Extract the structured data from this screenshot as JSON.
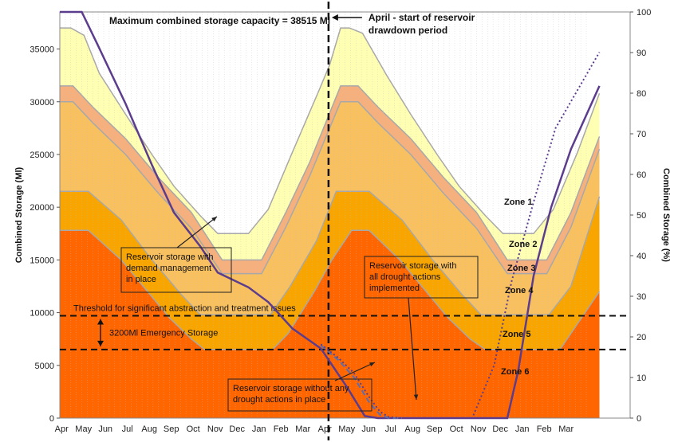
{
  "chart_data": {
    "type": "area",
    "ylabel": "Combined Storage (Ml)",
    "y2label": "Combined Storage (%)",
    "ylim": [
      0,
      38515
    ],
    "y2lim": [
      0,
      100
    ],
    "yticks": [
      0,
      5000,
      10000,
      15000,
      20000,
      25000,
      30000,
      35000
    ],
    "y2ticks": [
      0,
      10,
      20,
      30,
      40,
      50,
      60,
      70,
      80,
      90,
      100
    ],
    "xticks": [
      "Apr",
      "May",
      "Jun",
      "Jul",
      "Aug",
      "Sep",
      "Oct",
      "Nov",
      "Dec",
      "Jan",
      "Feb",
      "Mar",
      "Apr",
      "May",
      "Jun",
      "Jul",
      "Aug",
      "Sep",
      "Oct",
      "Nov",
      "Dec",
      "Jan",
      "Feb",
      "Mar"
    ],
    "x_months": [
      0,
      26
    ],
    "zones": [
      {
        "name": "Zone 1",
        "color": "#FFFFB4",
        "points": [
          [
            0,
            37000
          ],
          [
            0.5,
            37000
          ],
          [
            1.1,
            36300
          ],
          [
            1.8,
            32700
          ],
          [
            3,
            28800
          ],
          [
            4.2,
            25000
          ],
          [
            5.2,
            22000
          ],
          [
            6.4,
            19200
          ],
          [
            7.2,
            17500
          ],
          [
            8.6,
            17500
          ],
          [
            9.5,
            19800
          ],
          [
            10.6,
            25200
          ],
          [
            11.8,
            31000
          ],
          [
            12.3,
            33500
          ],
          [
            12.8,
            37000
          ],
          [
            13.2,
            37000
          ],
          [
            13.8,
            36500
          ],
          [
            14.9,
            32500
          ],
          [
            16,
            28800
          ],
          [
            17.2,
            25000
          ],
          [
            18.2,
            22000
          ],
          [
            19.4,
            19200
          ],
          [
            20.2,
            17500
          ],
          [
            21.6,
            17500
          ],
          [
            22.5,
            19800
          ],
          [
            23.6,
            25200
          ],
          [
            24.6,
            30800
          ]
        ]
      },
      {
        "name": "Zone 2",
        "color": "#F5B07E",
        "points": [
          [
            0,
            31500
          ],
          [
            0.6,
            31500
          ],
          [
            1.5,
            29500
          ],
          [
            3,
            26500
          ],
          [
            4.5,
            22800
          ],
          [
            6,
            19500
          ],
          [
            7.4,
            15000
          ],
          [
            9.2,
            15000
          ],
          [
            10.3,
            19500
          ],
          [
            11.4,
            24300
          ],
          [
            12.8,
            31500
          ],
          [
            13.6,
            31500
          ],
          [
            14.5,
            29500
          ],
          [
            16,
            26500
          ],
          [
            17.5,
            22800
          ],
          [
            19,
            19500
          ],
          [
            20.4,
            15000
          ],
          [
            22.2,
            15000
          ],
          [
            23.3,
            19500
          ],
          [
            24.6,
            26700
          ]
        ]
      },
      {
        "name": "Zone 3",
        "color": "#F9C060",
        "points": [
          [
            0,
            30000
          ],
          [
            0.6,
            30000
          ],
          [
            1.5,
            28000
          ],
          [
            3,
            25000
          ],
          [
            4.5,
            21300
          ],
          [
            6,
            18000
          ],
          [
            7.4,
            13700
          ],
          [
            9.2,
            13700
          ],
          [
            10.3,
            18100
          ],
          [
            11.4,
            23000
          ],
          [
            12.8,
            30000
          ],
          [
            13.6,
            30000
          ],
          [
            14.5,
            28000
          ],
          [
            16,
            25000
          ],
          [
            17.5,
            21300
          ],
          [
            19,
            18000
          ],
          [
            20.4,
            13700
          ],
          [
            22.2,
            13700
          ],
          [
            23.3,
            18100
          ],
          [
            24.6,
            25500
          ]
        ]
      },
      {
        "name": "Zone 4",
        "color": "#F9A500",
        "points": [
          [
            0,
            21500
          ],
          [
            1.3,
            21500
          ],
          [
            2.8,
            18800
          ],
          [
            4.2,
            15000
          ],
          [
            5.5,
            11800
          ],
          [
            6.4,
            9800
          ],
          [
            9.6,
            9800
          ],
          [
            10.5,
            12500
          ],
          [
            11.7,
            16800
          ],
          [
            12.6,
            21500
          ],
          [
            14.1,
            21500
          ],
          [
            15.6,
            18800
          ],
          [
            17,
            15000
          ],
          [
            18.3,
            11800
          ],
          [
            19.2,
            9800
          ],
          [
            22.3,
            9800
          ],
          [
            23.3,
            12500
          ],
          [
            24.6,
            21000
          ]
        ]
      },
      {
        "name": "Zone 5",
        "color": "#FF6600",
        "points": [
          [
            0,
            17800
          ],
          [
            0.7,
            17800
          ],
          [
            1.3,
            17800
          ],
          [
            2.8,
            15000
          ],
          [
            4,
            12000
          ],
          [
            5,
            9500
          ],
          [
            6,
            7500
          ],
          [
            6.6,
            6500
          ],
          [
            9.7,
            6500
          ],
          [
            10.4,
            8000
          ],
          [
            11.6,
            12000
          ],
          [
            12.4,
            15000
          ],
          [
            13.3,
            17800
          ],
          [
            14.1,
            17800
          ],
          [
            15.5,
            15000
          ],
          [
            16.7,
            12000
          ],
          [
            17.7,
            9500
          ],
          [
            18.7,
            7500
          ],
          [
            19.4,
            6500
          ],
          [
            22.8,
            6500
          ],
          [
            24.6,
            12000
          ]
        ]
      }
    ],
    "series": [
      {
        "name": "Reservoir storage with demand management in place",
        "style": "solid",
        "color": "#5C3C8C",
        "points": [
          [
            0,
            38515
          ],
          [
            1,
            38515
          ],
          [
            1.7,
            35500
          ],
          [
            3,
            29800
          ],
          [
            4.2,
            24000
          ],
          [
            5.2,
            19500
          ],
          [
            6.4,
            16300
          ],
          [
            7.2,
            13800
          ],
          [
            8.6,
            12400
          ],
          [
            9.5,
            11000
          ],
          [
            10.6,
            8500
          ],
          [
            11.9,
            6600
          ],
          [
            13.1,
            2900
          ],
          [
            13.9,
            200
          ],
          [
            14.5,
            0
          ],
          [
            15.4,
            0
          ],
          [
            18.8,
            0
          ],
          [
            20.4,
            0
          ],
          [
            20.9,
            4500
          ],
          [
            21.6,
            13500
          ],
          [
            22.4,
            20000
          ],
          [
            23.3,
            25500
          ],
          [
            24.6,
            31500
          ]
        ]
      },
      {
        "name": "Reservoir storage without any drought actions in place",
        "style": "dashed",
        "color": "#5A6FB0",
        "points": [
          [
            11.9,
            6900
          ],
          [
            12.7,
            5500
          ],
          [
            13.4,
            3900
          ],
          [
            14.1,
            1500
          ],
          [
            14.6,
            300
          ],
          [
            15,
            0
          ],
          [
            15.6,
            0
          ]
        ]
      },
      {
        "name": "Reservoir storage with all drought actions implemented",
        "style": "dotted",
        "color": "#5C3C8C",
        "points": [
          [
            11.9,
            7000
          ],
          [
            12.7,
            5700
          ],
          [
            13.4,
            4300
          ],
          [
            14.1,
            2000
          ],
          [
            14.6,
            600
          ],
          [
            15,
            100
          ],
          [
            15.6,
            0
          ],
          [
            18.8,
            0
          ],
          [
            19.8,
            5000
          ],
          [
            20.6,
            13000
          ],
          [
            21.6,
            20500
          ],
          [
            22.6,
            27500
          ],
          [
            24.6,
            34700
          ]
        ]
      }
    ],
    "thresholds": [
      {
        "value": 9700,
        "label": "Threshold for significant abstraction and treatment  issues"
      },
      {
        "value": 6500,
        "label": ""
      }
    ],
    "emergency_label": "3200Ml Emergency Storage",
    "vline_x": 12.25,
    "annotations": {
      "title": "Maximum combined storage capacity = 38515 Ml",
      "vline_note_line1": "April - start of reservoir",
      "vline_note_line2": "drawdown period",
      "box1": [
        "Reservoir storage with",
        "demand management",
        "in place"
      ],
      "box2": [
        "Reservoir storage with",
        "all drought actions",
        "implemented"
      ],
      "box3": [
        "Reservoir storage without any",
        "drought actions in place"
      ]
    },
    "zone_labels": [
      "Zone 1",
      "Zone 2",
      "Zone 3",
      "Zone 4",
      "Zone 5",
      "Zone 6"
    ],
    "colors": {
      "zone6": "#FF5000",
      "grid_dotted": "#9a9a9a"
    }
  }
}
